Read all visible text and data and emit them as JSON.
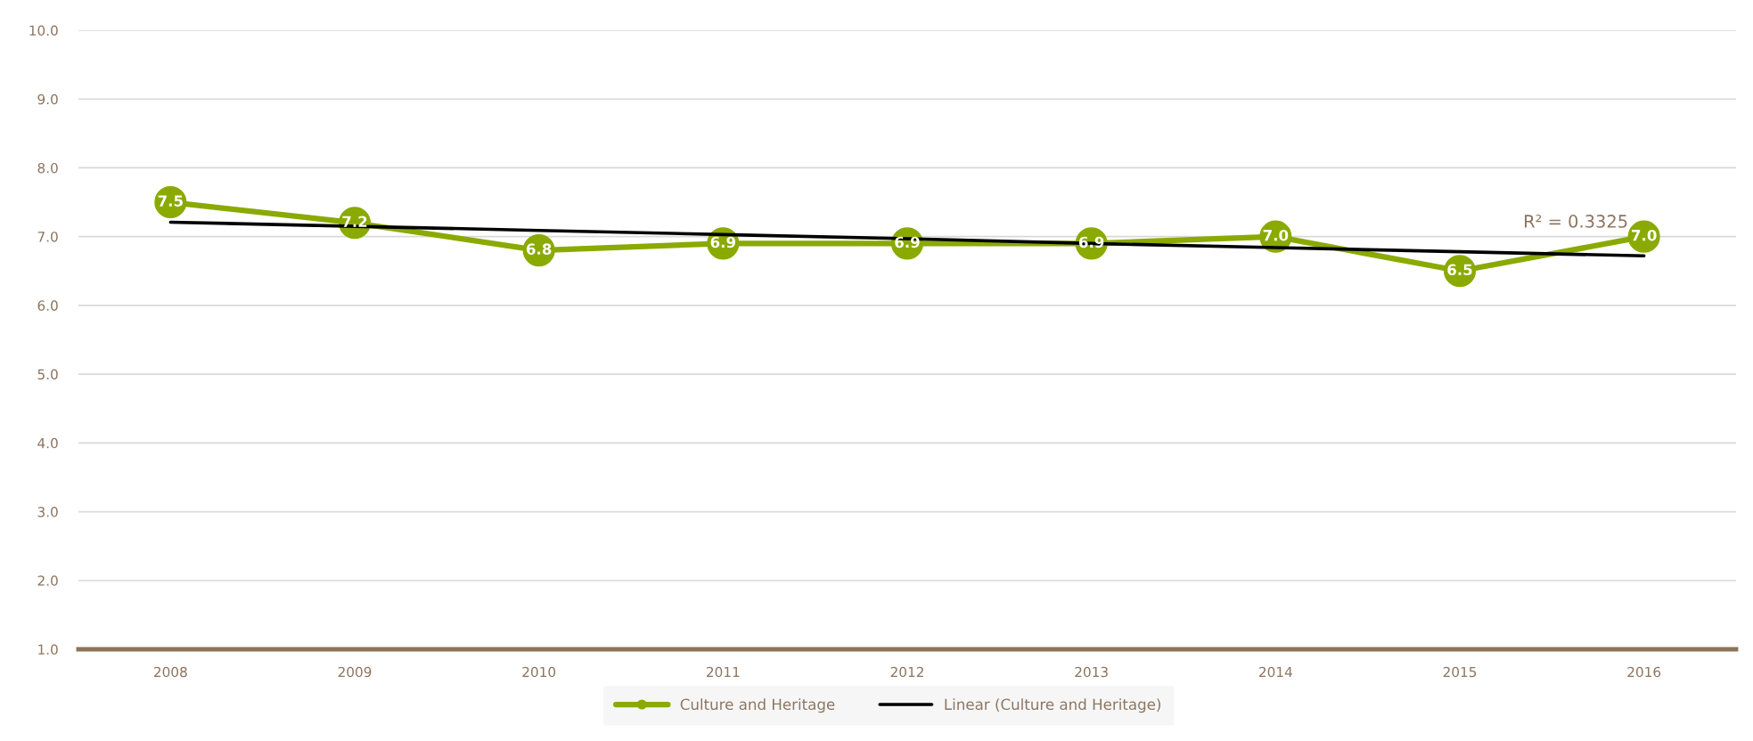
{
  "chart_data": {
    "type": "line",
    "categories": [
      "2008",
      "2009",
      "2010",
      "2011",
      "2012",
      "2013",
      "2014",
      "2015",
      "2016"
    ],
    "series": [
      {
        "name": "Culture and Heritage",
        "color": "#8aaa00",
        "marker": "circle",
        "values": [
          7.5,
          7.2,
          6.8,
          6.9,
          6.9,
          6.9,
          7.0,
          6.5,
          7.0
        ],
        "value_labels": [
          "7.5",
          "7.2",
          "6.8",
          "6.9",
          "6.9",
          "6.9",
          "7.0",
          "6.5",
          "7.0"
        ]
      },
      {
        "name": "Linear (Culture and Heritage)",
        "color": "#000000",
        "marker": "none",
        "values": [
          7.21,
          7.15,
          7.09,
          7.03,
          6.97,
          6.9,
          6.84,
          6.78,
          6.72
        ]
      }
    ],
    "ylim": [
      1,
      10
    ],
    "yticks": [
      {
        "value": 1,
        "label": "1.0"
      },
      {
        "value": 2,
        "label": "2.0"
      },
      {
        "value": 3,
        "label": "3.0"
      },
      {
        "value": 4,
        "label": "4.0"
      },
      {
        "value": 5,
        "label": "5.0"
      },
      {
        "value": 6,
        "label": "6.0"
      },
      {
        "value": 7,
        "label": "7.0"
      },
      {
        "value": 8,
        "label": "8.0"
      },
      {
        "value": 9,
        "label": "9.0"
      },
      {
        "value": 10,
        "label": "10.0"
      }
    ],
    "grid": "y",
    "legend": "bottom",
    "line_style": "solid",
    "annotations": [
      "R² = 0.3325"
    ]
  }
}
